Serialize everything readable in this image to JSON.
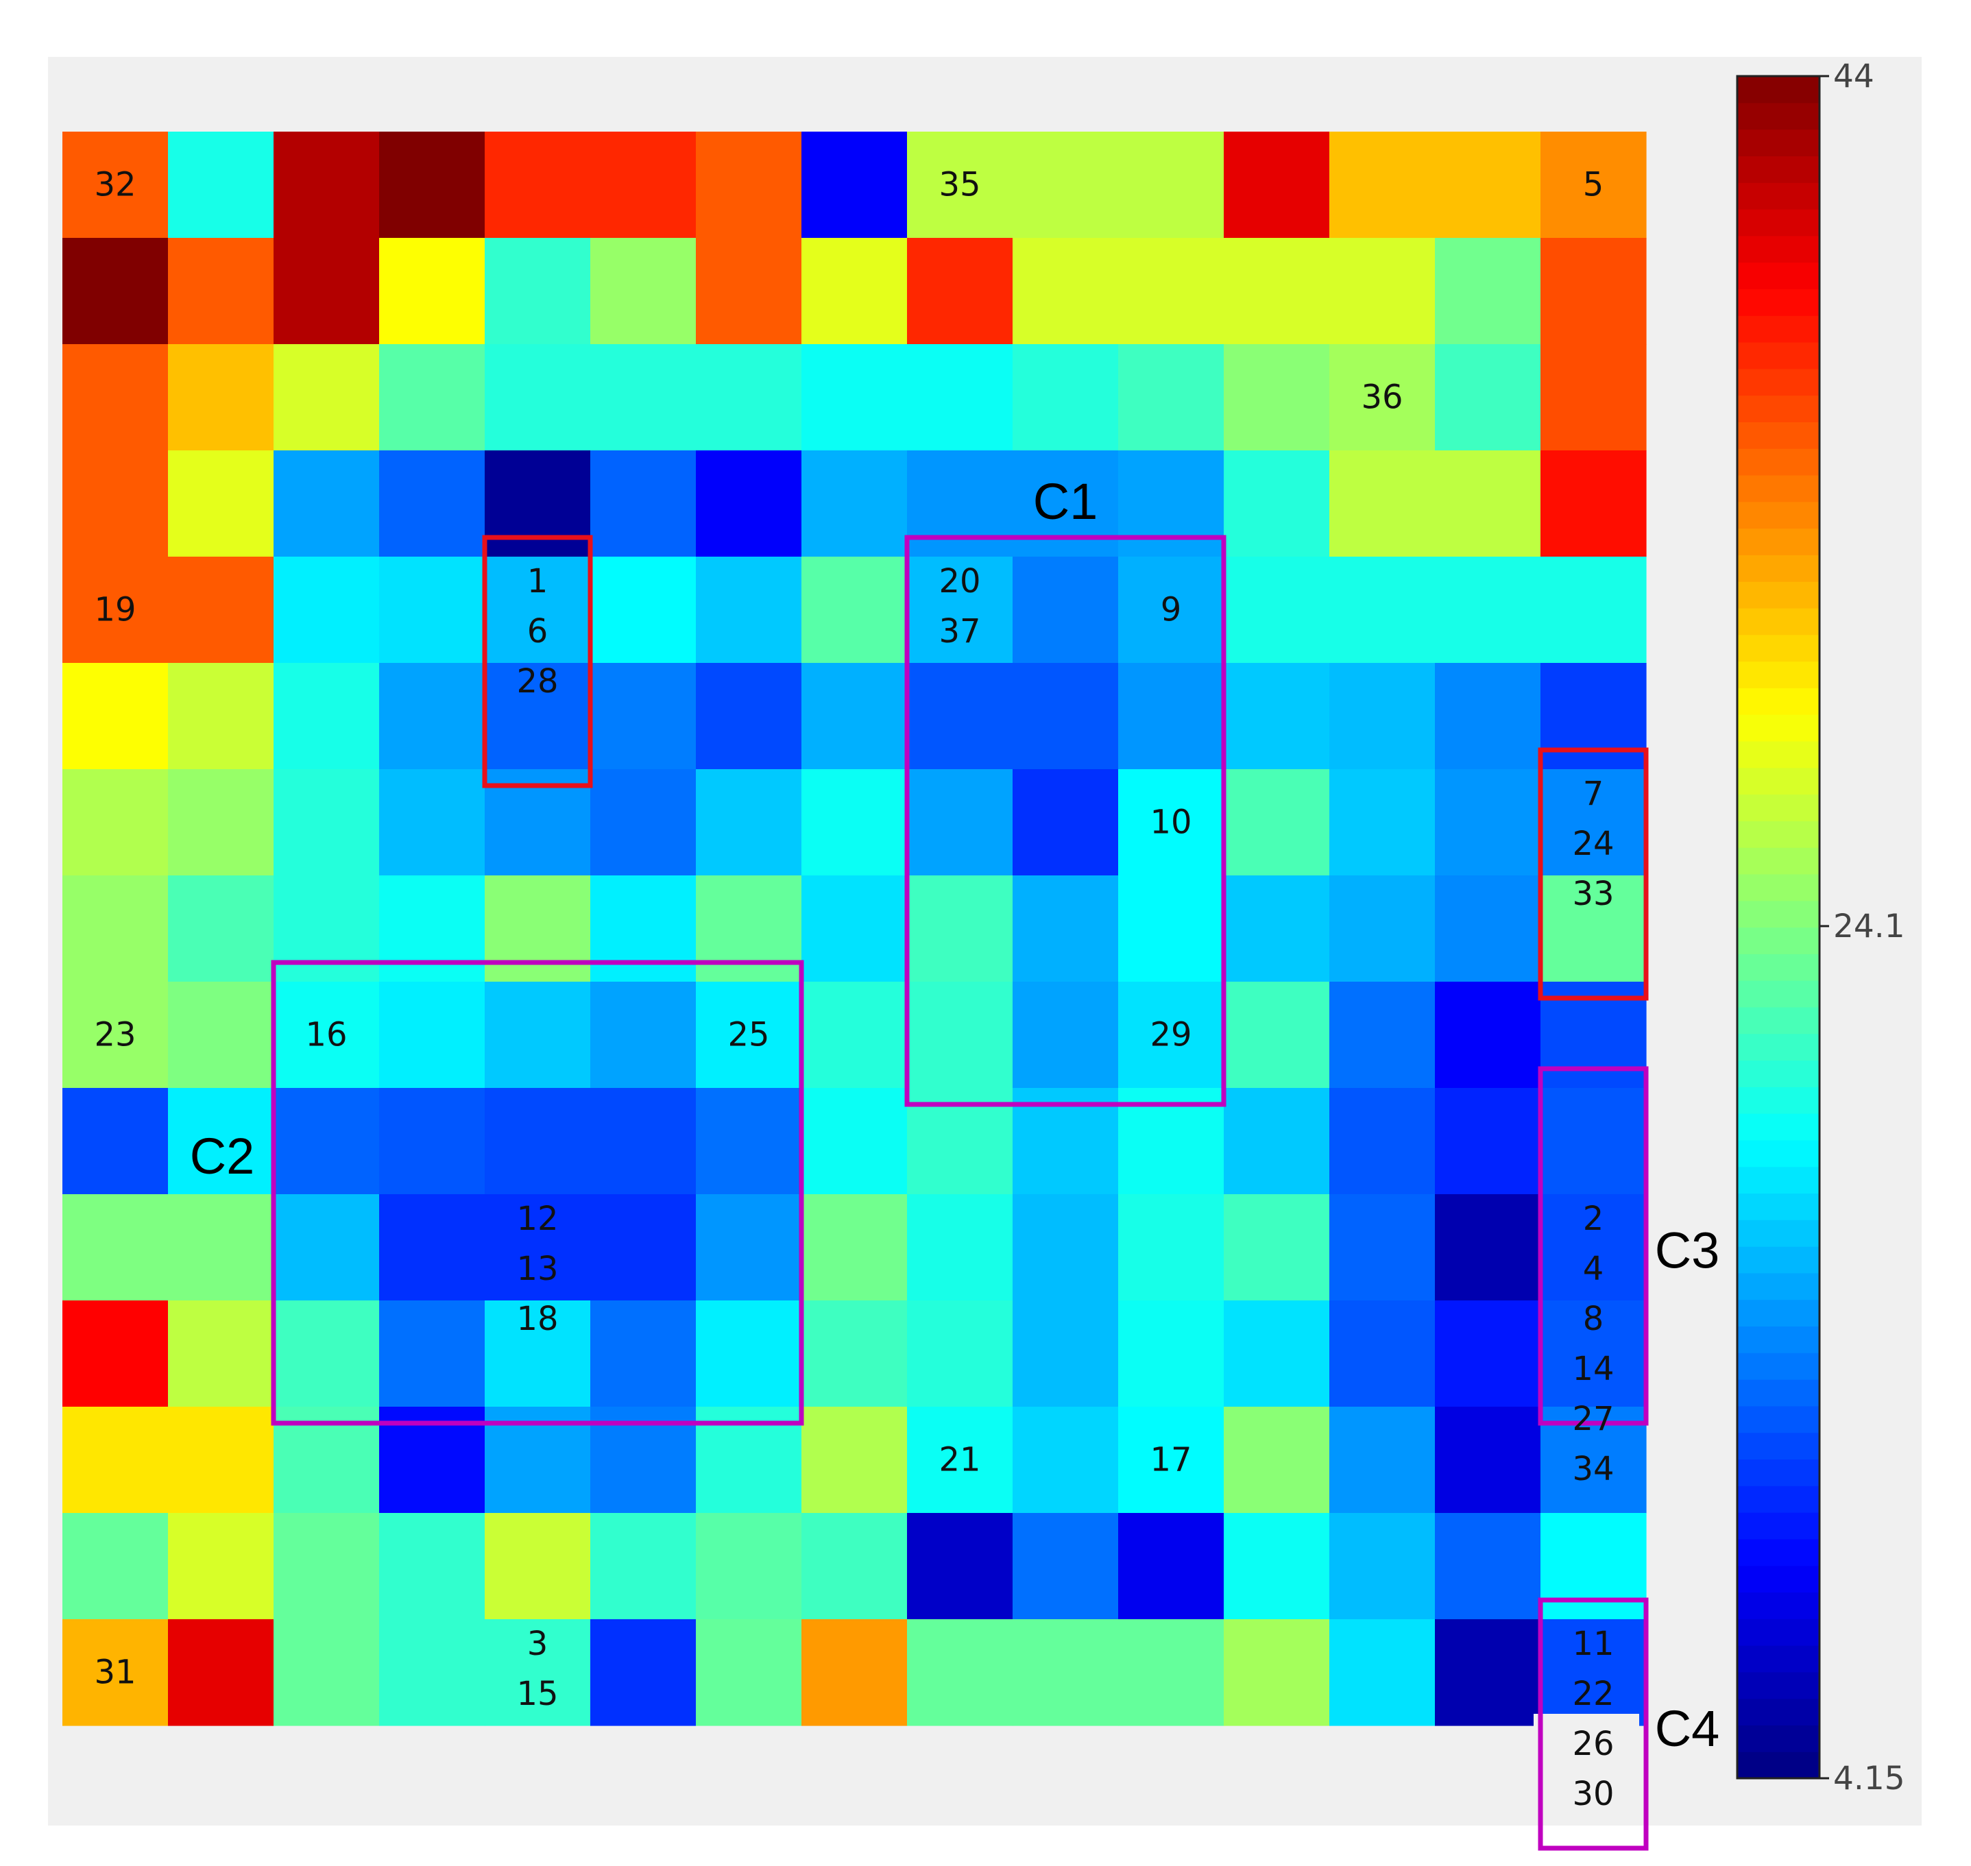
{
  "chart_data": {
    "type": "heatmap",
    "title": "",
    "xlabel": "",
    "ylabel": "",
    "grid_size": [
      15,
      15
    ],
    "colormap": "jet",
    "colorbar": {
      "min": 4.15,
      "max": 44,
      "ticks": [
        "44",
        "24.1",
        "4.15"
      ],
      "tick_values": [
        44,
        24.1,
        4.15
      ]
    },
    "values": [
      [
        35.5,
        20.0,
        42.0,
        44.0,
        37.5,
        37.5,
        35.5,
        9.0,
        26.5,
        26.5,
        26.5,
        40.0,
        31.5,
        31.5,
        33.5
      ],
      [
        44.0,
        35.5,
        42.0,
        29.0,
        21.0,
        25.0,
        35.5,
        28.0,
        37.5,
        27.5,
        27.5,
        27.5,
        27.5,
        23.5,
        36.0
      ],
      [
        35.5,
        31.5,
        27.5,
        22.5,
        20.5,
        20.5,
        20.5,
        19.5,
        19.5,
        20.5,
        21.5,
        24.5,
        25.5,
        21.5,
        36.0
      ],
      [
        35.5,
        28.0,
        15.5,
        13.0,
        5.0,
        13.0,
        9.0,
        16.0,
        15.0,
        15.0,
        15.5,
        20.5,
        26.5,
        26.5,
        38.5
      ],
      [
        35.5,
        35.5,
        18.5,
        18.0,
        16.5,
        19.0,
        17.0,
        22.5,
        16.5,
        14.0,
        16.0,
        20.0,
        20.0,
        20.0,
        20.0
      ],
      [
        29.0,
        27.0,
        20.0,
        15.5,
        13.0,
        14.0,
        12.0,
        16.0,
        12.5,
        12.5,
        15.0,
        17.0,
        16.5,
        14.5,
        11.5
      ],
      [
        26.0,
        25.0,
        20.5,
        16.5,
        15.0,
        13.5,
        17.0,
        19.5,
        15.5,
        11.0,
        19.0,
        22.0,
        17.0,
        15.0,
        14.5
      ],
      [
        25.0,
        22.0,
        20.5,
        19.5,
        24.5,
        18.5,
        23.0,
        18.0,
        21.5,
        16.0,
        19.0,
        17.0,
        16.0,
        14.5,
        23.0
      ],
      [
        25.0,
        24.0,
        19.5,
        18.5,
        17.0,
        15.5,
        18.5,
        20.5,
        21.0,
        15.5,
        18.0,
        21.5,
        13.5,
        9.0,
        12.0
      ],
      [
        12.0,
        18.5,
        13.0,
        12.5,
        12.0,
        12.0,
        13.5,
        19.5,
        21.0,
        17.0,
        19.5,
        17.0,
        12.5,
        10.5,
        12.5
      ],
      [
        24.0,
        24.0,
        16.5,
        11.0,
        11.0,
        11.0,
        15.0,
        23.5,
        20.0,
        16.5,
        20.0,
        21.5,
        13.0,
        6.0,
        12.0
      ],
      [
        39.0,
        26.5,
        21.5,
        13.5,
        18.0,
        13.5,
        18.5,
        21.5,
        20.5,
        16.5,
        19.5,
        18.0,
        12.5,
        10.0,
        12.5
      ],
      [
        30.0,
        30.0,
        22.0,
        9.5,
        15.5,
        14.0,
        20.5,
        26.0,
        19.5,
        17.5,
        19.0,
        24.5,
        15.0,
        8.0,
        14.0
      ],
      [
        23.0,
        27.5,
        23.0,
        21.0,
        27.0,
        21.0,
        22.5,
        21.5,
        7.0,
        13.5,
        8.5,
        19.5,
        16.5,
        13.0,
        19.0
      ],
      [
        32.0,
        40.0,
        23.0,
        21.0,
        21.0,
        11.0,
        23.0,
        33.0,
        23.0,
        23.0,
        23.0,
        25.5,
        18.0,
        6.0,
        12.0
      ]
    ],
    "cell_labels": [
      {
        "row": 0,
        "col": 0,
        "lines": [
          "32"
        ]
      },
      {
        "row": 0,
        "col": 8,
        "lines": [
          "35"
        ]
      },
      {
        "row": 0,
        "col": 14,
        "lines": [
          "5"
        ]
      },
      {
        "row": 2,
        "col": 12,
        "lines": [
          "36"
        ]
      },
      {
        "row": 4,
        "col": 0,
        "lines": [
          "19"
        ]
      },
      {
        "row": 4,
        "col": 4,
        "lines": [
          "1",
          "6",
          "28"
        ]
      },
      {
        "row": 4,
        "col": 8,
        "lines": [
          "20",
          "37"
        ]
      },
      {
        "row": 4,
        "col": 10,
        "lines": [
          "9"
        ]
      },
      {
        "row": 6,
        "col": 10,
        "lines": [
          "10"
        ]
      },
      {
        "row": 6,
        "col": 14,
        "lines": [
          "7",
          "24",
          "33"
        ]
      },
      {
        "row": 8,
        "col": 0,
        "lines": [
          "23"
        ]
      },
      {
        "row": 8,
        "col": 2,
        "lines": [
          "16"
        ]
      },
      {
        "row": 8,
        "col": 6,
        "lines": [
          "25"
        ]
      },
      {
        "row": 8,
        "col": 10,
        "lines": [
          "29"
        ]
      },
      {
        "row": 10,
        "col": 4,
        "lines": [
          "12",
          "13",
          "18"
        ]
      },
      {
        "row": 10,
        "col": 14,
        "lines": [
          "2",
          "4",
          "8",
          "14",
          "27",
          "34"
        ]
      },
      {
        "row": 12,
        "col": 8,
        "lines": [
          "21"
        ]
      },
      {
        "row": 12,
        "col": 10,
        "lines": [
          "17"
        ]
      },
      {
        "row": 14,
        "col": 4,
        "lines": [
          "3",
          "15"
        ]
      },
      {
        "row": 14,
        "col": 0,
        "lines": [
          "31"
        ]
      },
      {
        "row": 14,
        "col": 14,
        "lines": [
          "11",
          "22",
          "26",
          "30"
        ]
      }
    ],
    "clusters": [
      {
        "name": "C1",
        "color": "#c000c0",
        "rows": [
          4,
          8
        ],
        "cols": [
          8,
          10
        ],
        "label_position": "top"
      },
      {
        "name": "C2",
        "color": "#c000c0",
        "rows": [
          8,
          11
        ],
        "cols": [
          2,
          6
        ],
        "label_position": "left"
      },
      {
        "name": "C3",
        "color": "#c000c0",
        "rows": [
          9,
          11
        ],
        "cols": [
          14,
          14
        ],
        "label_position": "right"
      },
      {
        "name": "C4",
        "color": "#c000c0",
        "rows": [
          14,
          15
        ],
        "cols": [
          14,
          14
        ],
        "label_position": "right"
      }
    ],
    "highlight_boxes": [
      {
        "color": "#e8101a",
        "rows": [
          4,
          5
        ],
        "cols": [
          4,
          4
        ]
      },
      {
        "color": "#e8101a",
        "rows": [
          6,
          7
        ],
        "cols": [
          14,
          14
        ]
      }
    ]
  }
}
